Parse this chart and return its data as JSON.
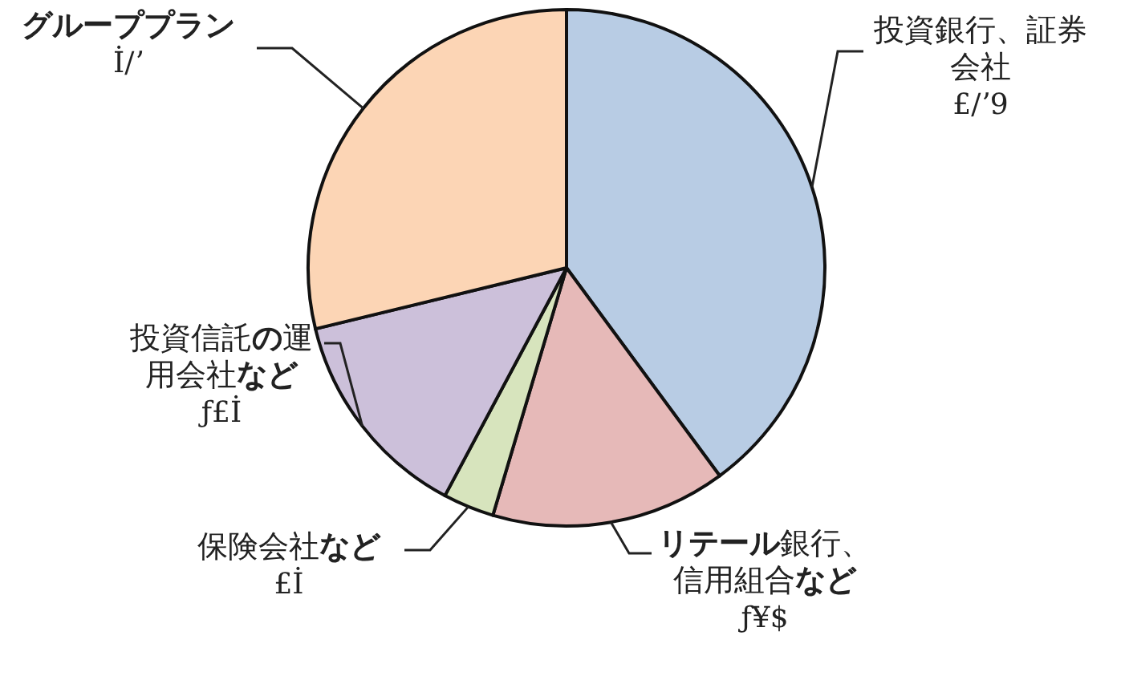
{
  "chart_data": {
    "type": "pie",
    "categories": [
      "投資銀行、証券会社",
      "**リテール**銀行、信用組合**など**",
      "保険会社**など**",
      "投資信託**の**運用会社**など**",
      "**グループプラン**"
    ],
    "values": [
      39.9,
      14.7,
      3.2,
      13.4,
      28.8
    ],
    "colors": [
      "#b8cce4",
      "#e6b9b8",
      "#d7e4bd",
      "#ccc0da",
      "#fcd5b5"
    ],
    "value_labels": [
      "£/ʼ9",
      "ƒ¥$",
      "£İ",
      "ƒ£İ",
      "İ/ʼ"
    ]
  }
}
